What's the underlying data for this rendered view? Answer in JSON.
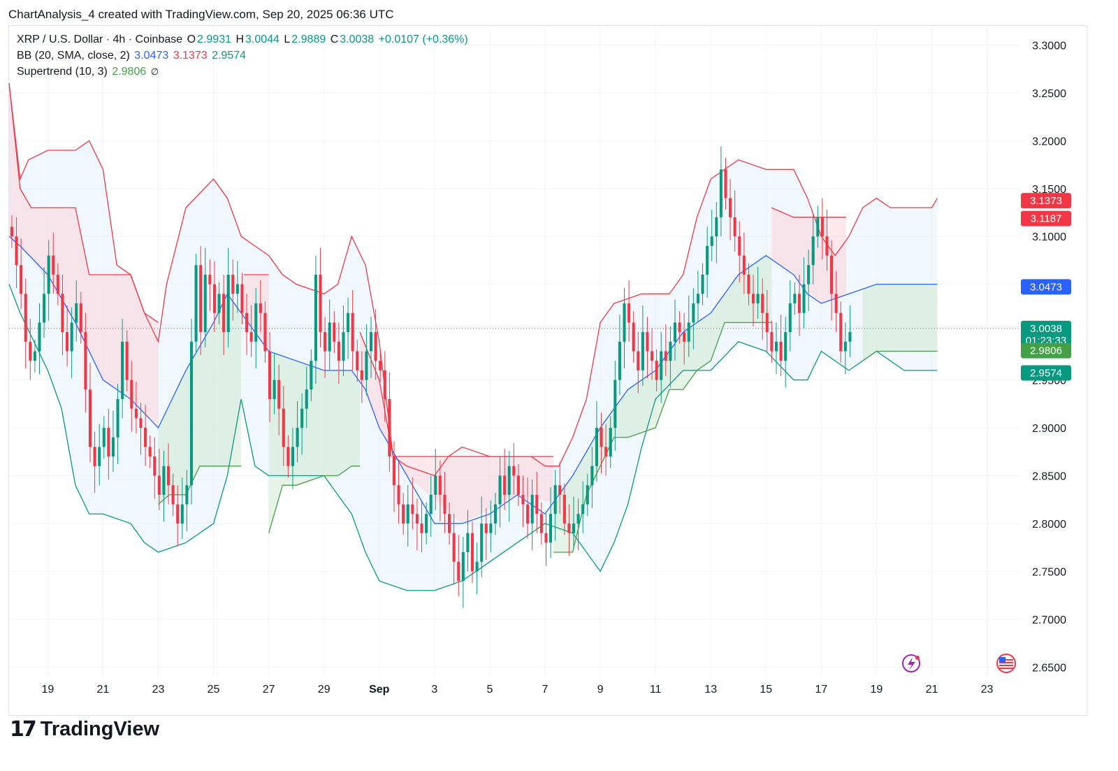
{
  "header": {
    "attribution": "ChartAnalysis_4 created with TradingView.com, Sep 20, 2025 06:36 UTC"
  },
  "legend": {
    "symbol": "XRP / U.S. Dollar · 4h · Coinbase",
    "o_label": "O",
    "o_value": "2.9931",
    "h_label": "H",
    "h_value": "3.0044",
    "l_label": "L",
    "l_value": "2.9889",
    "c_label": "C",
    "c_value": "3.0038",
    "change": "+0.0107 (+0.36%)",
    "bb_label": "BB (20, SMA, close, 2)",
    "bb_basis": "3.0473",
    "bb_upper": "3.1373",
    "bb_lower": "2.9574",
    "st_label": "Supertrend (10, 3)",
    "st_value": "2.9806",
    "st_icon": "∅"
  },
  "footer": {
    "brand": "TradingView",
    "logo_mark": "17"
  },
  "colors": {
    "up": "#089981",
    "down": "#f23645",
    "bb_basis": "#2962ff",
    "bb_upper": "#f23645",
    "bb_lower": "#089981",
    "bb_fill": "#e3f2fd",
    "st_up": "#43a047",
    "st_down": "#f23645"
  },
  "chart_data": {
    "type": "candlestick",
    "y_ticks": [
      "3.3000",
      "3.2500",
      "3.2000",
      "3.1500",
      "3.1000",
      "3.0500",
      "3.0000",
      "2.9500",
      "2.9000",
      "2.8500",
      "2.8000",
      "2.7500",
      "2.7000",
      "2.6500"
    ],
    "y_tick_values": [
      3.3,
      3.25,
      3.2,
      3.15,
      3.1,
      3.05,
      3.0,
      2.95,
      2.9,
      2.85,
      2.8,
      2.75,
      2.7,
      2.65
    ],
    "ylim": [
      2.64,
      3.32
    ],
    "x_ticks": [
      "19",
      "21",
      "23",
      "25",
      "27",
      "29",
      "Sep",
      "3",
      "5",
      "7",
      "9",
      "11",
      "13",
      "15",
      "17",
      "19",
      "21",
      "23"
    ],
    "x_tick_days": [
      0,
      2,
      4,
      6,
      8,
      10,
      12,
      14,
      16,
      18,
      20,
      22,
      24,
      26,
      28,
      30,
      32,
      34
    ],
    "x_range_days": [
      -1.4,
      35.2
    ],
    "last_bar_day": 32.2,
    "price_tags": [
      {
        "label": "3.1373",
        "value": 3.1373,
        "color": "#f23645"
      },
      {
        "label": "3.1187",
        "value": 3.1187,
        "color": "#f23645"
      },
      {
        "label": "3.0473",
        "value": 3.0473,
        "color": "#2962ff"
      },
      {
        "label": "3.0038",
        "sub": "01:23:33",
        "value": 3.0038,
        "color": "#089981"
      },
      {
        "label": "2.9806",
        "value": 2.9806,
        "color": "#43a047"
      },
      {
        "label": "2.9574",
        "value": 2.9574,
        "color": "#089981"
      }
    ],
    "bb_upper": [
      [
        -1.4,
        3.26
      ],
      [
        -1.0,
        3.16
      ],
      [
        -0.7,
        3.18
      ],
      [
        0,
        3.19
      ],
      [
        1,
        3.19
      ],
      [
        1.5,
        3.2
      ],
      [
        2,
        3.17
      ],
      [
        2.5,
        3.07
      ],
      [
        3,
        3.06
      ],
      [
        3.5,
        3.02
      ],
      [
        4,
        2.99
      ],
      [
        4.3,
        3.05
      ],
      [
        5,
        3.13
      ],
      [
        6,
        3.16
      ],
      [
        6.5,
        3.14
      ],
      [
        7,
        3.1
      ],
      [
        7.5,
        3.09
      ],
      [
        8,
        3.08
      ],
      [
        8.5,
        3.06
      ],
      [
        9,
        3.05
      ],
      [
        10,
        3.04
      ],
      [
        10.5,
        3.05
      ],
      [
        11,
        3.1
      ],
      [
        11.5,
        3.07
      ],
      [
        12,
        2.99
      ],
      [
        12.5,
        2.87
      ],
      [
        13,
        2.86
      ],
      [
        14,
        2.85
      ],
      [
        14.5,
        2.87
      ],
      [
        15,
        2.88
      ],
      [
        16,
        2.87
      ],
      [
        17,
        2.87
      ],
      [
        17.5,
        2.87
      ],
      [
        18,
        2.86
      ],
      [
        18.5,
        2.86
      ],
      [
        19,
        2.89
      ],
      [
        19.5,
        2.93
      ],
      [
        20,
        3.01
      ],
      [
        20.5,
        3.03
      ],
      [
        21.5,
        3.04
      ],
      [
        22.5,
        3.04
      ],
      [
        23,
        3.06
      ],
      [
        23.5,
        3.12
      ],
      [
        24,
        3.16
      ],
      [
        24.5,
        3.17
      ],
      [
        25,
        3.18
      ],
      [
        26,
        3.17
      ],
      [
        26.5,
        3.17
      ],
      [
        27,
        3.17
      ],
      [
        27.5,
        3.14
      ],
      [
        28,
        3.1
      ],
      [
        28.5,
        3.08
      ],
      [
        29,
        3.1
      ],
      [
        29.5,
        3.13
      ],
      [
        30,
        3.14
      ],
      [
        30.5,
        3.13
      ],
      [
        31,
        3.13
      ],
      [
        32,
        3.13
      ],
      [
        32.2,
        3.14
      ]
    ],
    "bb_basis": [
      [
        -1.4,
        3.1
      ],
      [
        -1.0,
        3.09
      ],
      [
        0,
        3.06
      ],
      [
        1,
        3.01
      ],
      [
        2,
        2.95
      ],
      [
        3,
        2.93
      ],
      [
        4,
        2.9
      ],
      [
        5,
        2.96
      ],
      [
        6,
        3.01
      ],
      [
        6.5,
        3.04
      ],
      [
        7,
        3.02
      ],
      [
        8,
        2.98
      ],
      [
        9,
        2.97
      ],
      [
        10,
        2.96
      ],
      [
        11,
        2.96
      ],
      [
        11.5,
        2.94
      ],
      [
        12,
        2.9
      ],
      [
        13,
        2.85
      ],
      [
        14,
        2.8
      ],
      [
        15,
        2.8
      ],
      [
        16,
        2.81
      ],
      [
        17,
        2.83
      ],
      [
        18,
        2.81
      ],
      [
        19,
        2.85
      ],
      [
        20,
        2.9
      ],
      [
        21,
        2.94
      ],
      [
        22,
        2.96
      ],
      [
        23,
        3.0
      ],
      [
        24,
        3.02
      ],
      [
        24.5,
        3.04
      ],
      [
        25,
        3.06
      ],
      [
        26,
        3.08
      ],
      [
        27,
        3.06
      ],
      [
        27.5,
        3.04
      ],
      [
        28,
        3.03
      ],
      [
        29,
        3.04
      ],
      [
        30,
        3.05
      ],
      [
        31,
        3.05
      ],
      [
        32.2,
        3.05
      ]
    ],
    "bb_lower": [
      [
        -1.4,
        3.05
      ],
      [
        -1.0,
        3.02
      ],
      [
        0,
        2.96
      ],
      [
        0.5,
        2.92
      ],
      [
        1,
        2.84
      ],
      [
        1.5,
        2.81
      ],
      [
        2,
        2.81
      ],
      [
        3,
        2.8
      ],
      [
        3.5,
        2.78
      ],
      [
        4,
        2.77
      ],
      [
        5,
        2.78
      ],
      [
        6,
        2.8
      ],
      [
        6.5,
        2.85
      ],
      [
        7,
        2.93
      ],
      [
        7.5,
        2.86
      ],
      [
        8,
        2.85
      ],
      [
        9,
        2.85
      ],
      [
        10,
        2.85
      ],
      [
        11,
        2.81
      ],
      [
        11.5,
        2.77
      ],
      [
        12,
        2.74
      ],
      [
        13,
        2.73
      ],
      [
        14,
        2.73
      ],
      [
        15,
        2.74
      ],
      [
        16,
        2.76
      ],
      [
        17,
        2.78
      ],
      [
        18,
        2.8
      ],
      [
        19,
        2.79
      ],
      [
        20,
        2.75
      ],
      [
        20.5,
        2.78
      ],
      [
        21,
        2.82
      ],
      [
        21.5,
        2.88
      ],
      [
        22,
        2.93
      ],
      [
        23,
        2.96
      ],
      [
        24,
        2.96
      ],
      [
        25,
        2.99
      ],
      [
        26,
        2.98
      ],
      [
        27,
        2.95
      ],
      [
        27.5,
        2.95
      ],
      [
        28,
        2.98
      ],
      [
        29,
        2.96
      ],
      [
        30,
        2.98
      ],
      [
        31,
        2.96
      ],
      [
        32.2,
        2.96
      ]
    ],
    "supertrend": [
      {
        "dir": "down",
        "points": [
          [
            -1.4,
            3.26
          ],
          [
            -1.0,
            3.15
          ],
          [
            -0.6,
            3.13
          ],
          [
            1,
            3.13
          ],
          [
            1.5,
            3.06
          ],
          [
            2,
            3.06
          ],
          [
            3,
            3.06
          ],
          [
            3.5,
            3.02
          ],
          [
            4,
            3.01
          ]
        ]
      },
      {
        "dir": "up",
        "points": [
          [
            4,
            2.82
          ],
          [
            4.4,
            2.83
          ],
          [
            5,
            2.83
          ],
          [
            5.5,
            2.86
          ],
          [
            6,
            2.86
          ],
          [
            6.5,
            2.86
          ],
          [
            7,
            2.86
          ]
        ]
      },
      {
        "dir": "down",
        "points": [
          [
            7.1,
            3.06
          ],
          [
            8,
            3.06
          ]
        ]
      },
      {
        "dir": "up",
        "points": [
          [
            8,
            2.79
          ],
          [
            8.5,
            2.84
          ],
          [
            9,
            2.84
          ],
          [
            10,
            2.85
          ],
          [
            10.5,
            2.85
          ],
          [
            11,
            2.86
          ],
          [
            11.3,
            2.86
          ]
        ]
      },
      {
        "dir": "down",
        "points": [
          [
            11.3,
            3.0
          ],
          [
            12,
            2.95
          ],
          [
            12.5,
            2.87
          ],
          [
            13,
            2.87
          ],
          [
            15,
            2.87
          ],
          [
            17,
            2.87
          ],
          [
            18.3,
            2.87
          ]
        ]
      },
      {
        "dir": "up",
        "points": [
          [
            18.3,
            2.77
          ],
          [
            19,
            2.77
          ],
          [
            19.5,
            2.83
          ],
          [
            20,
            2.86
          ],
          [
            20.5,
            2.89
          ],
          [
            21,
            2.89
          ],
          [
            22,
            2.9
          ],
          [
            22.5,
            2.94
          ],
          [
            23,
            2.94
          ],
          [
            23.5,
            2.96
          ],
          [
            24,
            2.97
          ],
          [
            24.5,
            3.01
          ],
          [
            25,
            3.01
          ],
          [
            26,
            3.01
          ],
          [
            26.2,
            3.01
          ]
        ]
      },
      {
        "dir": "down",
        "points": [
          [
            26.2,
            3.13
          ],
          [
            27,
            3.12
          ],
          [
            28,
            3.12
          ],
          [
            28.9,
            3.12
          ]
        ]
      },
      {
        "dir": "up",
        "points": [
          [
            29.5,
            2.97
          ],
          [
            30,
            2.98
          ],
          [
            31,
            2.98
          ],
          [
            32.2,
            2.98
          ]
        ]
      }
    ],
    "candles": {
      "start_day": -1.3,
      "step_days": 0.1667,
      "closes": [
        3.1,
        3.07,
        3.04,
        2.99,
        2.97,
        2.98,
        3.01,
        3.04,
        3.08,
        3.06,
        3.04,
        3.0,
        2.98,
        3.01,
        3.03,
        3.0,
        2.94,
        2.88,
        2.86,
        2.88,
        2.9,
        2.87,
        2.89,
        2.93,
        2.99,
        2.95,
        2.92,
        2.91,
        2.9,
        2.88,
        2.87,
        2.85,
        2.83,
        2.86,
        2.84,
        2.82,
        2.8,
        2.82,
        2.84,
        2.99,
        3.07,
        3.0,
        3.06,
        3.05,
        3.02,
        3.04,
        3.0,
        3.06,
        3.04,
        3.05,
        3.02,
        3.0,
        2.99,
        3.03,
        3.02,
        2.98,
        2.93,
        2.95,
        2.92,
        2.88,
        2.86,
        2.88,
        2.9,
        2.92,
        2.94,
        2.97,
        3.06,
        3.0,
        2.98,
        3.01,
        2.99,
        2.97,
        3.0,
        3.02,
        2.98,
        2.96,
        2.95,
        2.98,
        3.0,
        2.97,
        2.96,
        2.93,
        2.87,
        2.84,
        2.82,
        2.8,
        2.82,
        2.81,
        2.8,
        2.79,
        2.81,
        2.83,
        2.85,
        2.83,
        2.81,
        2.79,
        2.76,
        2.74,
        2.77,
        2.79,
        2.75,
        2.76,
        2.8,
        2.79,
        2.8,
        2.82,
        2.85,
        2.83,
        2.86,
        2.85,
        2.83,
        2.82,
        2.8,
        2.83,
        2.81,
        2.79,
        2.78,
        2.81,
        2.84,
        2.83,
        2.8,
        2.79,
        2.8,
        2.81,
        2.82,
        2.84,
        2.86,
        2.9,
        2.88,
        2.87,
        2.9,
        2.95,
        2.99,
        3.03,
        3.01,
        2.98,
        2.96,
        3.0,
        2.98,
        2.97,
        2.95,
        2.98,
        2.97,
        2.99,
        3.01,
        3.0,
        2.99,
        3.01,
        3.03,
        3.04,
        3.06,
        3.09,
        3.1,
        3.12,
        3.17,
        3.14,
        3.12,
        3.1,
        3.08,
        3.06,
        3.04,
        3.03,
        3.04,
        3.02,
        3.0,
        2.98,
        2.99,
        2.97,
        3.0,
        3.03,
        3.04,
        3.02,
        3.05,
        3.07,
        3.1,
        3.12,
        3.1,
        3.08,
        3.04,
        3.02,
        2.98,
        2.99,
        3.0
      ]
    }
  }
}
